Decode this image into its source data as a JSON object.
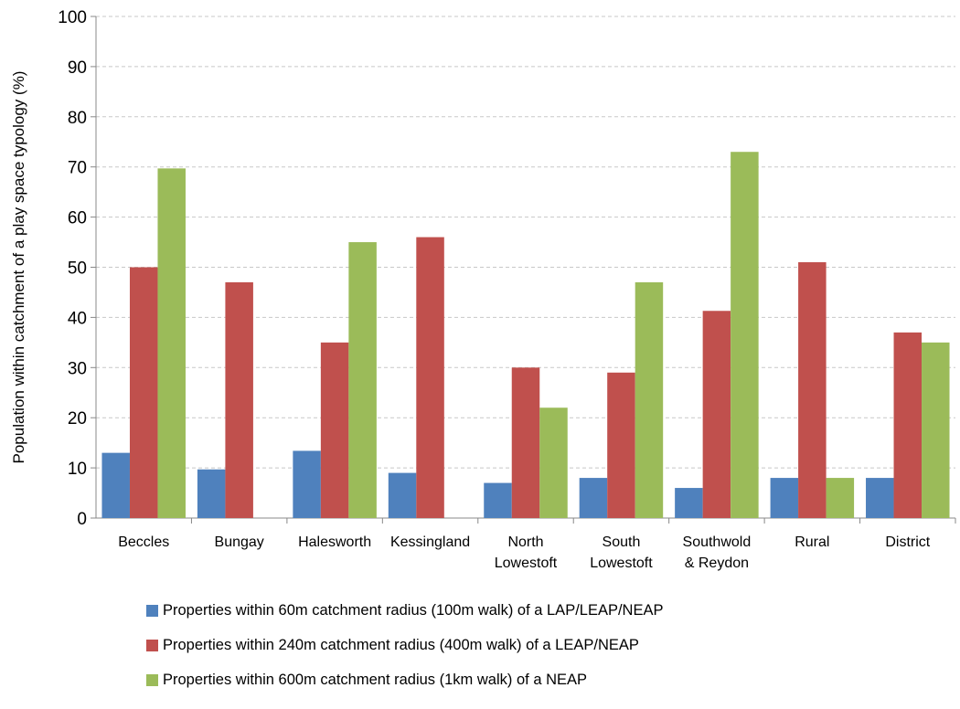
{
  "chart_data": {
    "type": "bar",
    "title": "",
    "xlabel": "",
    "ylabel": "Population within catchment of a play space typology (%)",
    "ylim": [
      0,
      100
    ],
    "yticks": [
      0,
      10,
      20,
      30,
      40,
      50,
      60,
      70,
      80,
      90,
      100
    ],
    "grid": true,
    "legend_position": "bottom",
    "categories": [
      [
        "Beccles"
      ],
      [
        "Bungay"
      ],
      [
        "Halesworth"
      ],
      [
        "Kessingland"
      ],
      [
        "North",
        "Lowestoft"
      ],
      [
        "South",
        "Lowestoft"
      ],
      [
        "Southwold",
        "& Reydon"
      ],
      [
        "Rural"
      ],
      [
        "District"
      ]
    ],
    "series": [
      {
        "name": "Properties within 60m catchment radius (100m walk) of a LAP/LEAP/NEAP",
        "color": "#4f81bd",
        "values": [
          13,
          9.7,
          13.4,
          9,
          7,
          8,
          6,
          8,
          8
        ]
      },
      {
        "name": "Properties within 240m catchment radius (400m walk) of a LEAP/NEAP",
        "color": "#c0504d",
        "values": [
          50,
          47,
          35,
          56,
          30,
          29,
          41.3,
          51,
          37
        ]
      },
      {
        "name": "Properties within 600m catchment radius (1km walk) of a NEAP",
        "color": "#9bbb59",
        "values": [
          69.7,
          0,
          55,
          0,
          22,
          47,
          73,
          8,
          35
        ]
      }
    ]
  }
}
